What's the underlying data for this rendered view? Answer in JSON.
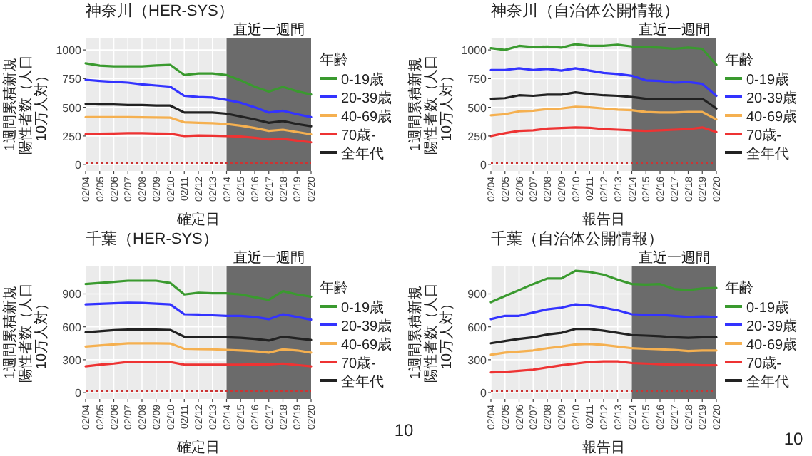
{
  "chart_data": [
    {
      "type": "line",
      "title": "神奈川（HER-SYS）",
      "xlabel": "確定日",
      "ylabel": "1週間累積新規陽性者数（人口10万人対）",
      "legend_title": "年齢",
      "legend": "right",
      "grid": true,
      "categories": [
        "02/04",
        "02/05",
        "02/06",
        "02/07",
        "02/08",
        "02/09",
        "02/10",
        "02/11",
        "02/12",
        "02/13",
        "02/14",
        "02/15",
        "02/16",
        "02/17",
        "02/18",
        "02/19",
        "02/20"
      ],
      "ylim": [
        -55,
        1100
      ],
      "yticks": [
        0,
        250,
        500,
        750,
        1000
      ],
      "series": [
        {
          "name": "0-19歳",
          "color": "#3a9a2f",
          "values": [
            883,
            863,
            857,
            857,
            857,
            865,
            870,
            782,
            795,
            795,
            782,
            735,
            680,
            638,
            678,
            640,
            612
          ]
        },
        {
          "name": "20-39歳",
          "color": "#3333ff",
          "values": [
            740,
            730,
            722,
            715,
            700,
            690,
            680,
            600,
            590,
            585,
            565,
            540,
            500,
            455,
            470,
            440,
            415
          ]
        },
        {
          "name": "40-69歳",
          "color": "#f5b050",
          "values": [
            415,
            415,
            415,
            415,
            413,
            412,
            410,
            370,
            365,
            362,
            355,
            340,
            320,
            295,
            305,
            285,
            265
          ]
        },
        {
          "name": "70歳-",
          "color": "#ee3333",
          "values": [
            265,
            270,
            272,
            275,
            275,
            272,
            270,
            250,
            255,
            253,
            250,
            245,
            235,
            220,
            225,
            210,
            195
          ]
        },
        {
          "name": "全年代",
          "color": "#222222",
          "values": [
            530,
            525,
            525,
            520,
            520,
            515,
            515,
            455,
            455,
            455,
            445,
            420,
            395,
            365,
            380,
            355,
            335
          ]
        }
      ],
      "bands": [
        {
          "axis": "x",
          "from": "02/14",
          "to": "02/20",
          "label": "直近一週間",
          "color": "#6b6b6b"
        }
      ],
      "ref_lines": [
        {
          "axis": "y",
          "value": 15,
          "color": "#cc3333",
          "line_style": "dotted"
        }
      ]
    },
    {
      "type": "line",
      "title": "神奈川（自治体公開情報）",
      "xlabel": "報告日",
      "ylabel": "1週間累積新規陽性者数（人口10万人対）",
      "legend_title": "年齢",
      "legend": "right",
      "grid": true,
      "categories": [
        "02/04",
        "02/05",
        "02/06",
        "02/07",
        "02/08",
        "02/09",
        "02/10",
        "02/11",
        "02/12",
        "02/13",
        "02/14",
        "02/15",
        "02/16",
        "02/17",
        "02/18",
        "02/19",
        "02/20"
      ],
      "ylim": [
        -55,
        1100
      ],
      "yticks": [
        0,
        250,
        500,
        750,
        1000
      ],
      "series": [
        {
          "name": "0-19歳",
          "color": "#3a9a2f",
          "values": [
            1015,
            1000,
            1035,
            1025,
            1030,
            1020,
            1050,
            1035,
            1035,
            1045,
            1030,
            1025,
            1020,
            1010,
            1020,
            1010,
            870
          ]
        },
        {
          "name": "20-39歳",
          "color": "#3333ff",
          "values": [
            825,
            825,
            840,
            825,
            835,
            820,
            840,
            820,
            800,
            790,
            775,
            735,
            730,
            715,
            720,
            705,
            600
          ]
        },
        {
          "name": "40-69歳",
          "color": "#f5b050",
          "values": [
            430,
            440,
            465,
            470,
            485,
            490,
            505,
            500,
            490,
            480,
            475,
            460,
            455,
            455,
            460,
            460,
            395
          ]
        },
        {
          "name": "70歳-",
          "color": "#ee3333",
          "values": [
            250,
            275,
            295,
            300,
            315,
            320,
            325,
            322,
            310,
            305,
            300,
            295,
            300,
            305,
            310,
            325,
            285
          ]
        },
        {
          "name": "全年代",
          "color": "#222222",
          "values": [
            575,
            580,
            605,
            600,
            610,
            610,
            630,
            615,
            605,
            600,
            590,
            575,
            575,
            570,
            575,
            575,
            490
          ]
        }
      ],
      "bands": [
        {
          "axis": "x",
          "from": "02/14",
          "to": "02/20",
          "label": "直近一週間",
          "color": "#6b6b6b"
        }
      ],
      "ref_lines": [
        {
          "axis": "y",
          "value": 15,
          "color": "#cc3333",
          "line_style": "dotted"
        }
      ]
    },
    {
      "type": "line",
      "title": "千葉（HER-SYS）",
      "xlabel": "確定日",
      "ylabel": "1週間累積新規陽性者数（人口10万人対）",
      "legend_title": "年齢",
      "legend": "right",
      "grid": true,
      "categories": [
        "02/04",
        "02/05",
        "02/06",
        "02/07",
        "02/08",
        "02/09",
        "02/10",
        "02/11",
        "02/12",
        "02/13",
        "02/14",
        "02/15",
        "02/16",
        "02/17",
        "02/18",
        "02/19",
        "02/20"
      ],
      "ylim": [
        -58,
        1150
      ],
      "yticks": [
        0,
        300,
        600,
        900
      ],
      "series": [
        {
          "name": "0-19歳",
          "color": "#3a9a2f",
          "values": [
            990,
            1000,
            1010,
            1020,
            1020,
            1020,
            1000,
            895,
            910,
            905,
            905,
            895,
            870,
            845,
            925,
            895,
            875
          ]
        },
        {
          "name": "20-39歳",
          "color": "#3333ff",
          "values": [
            805,
            810,
            815,
            820,
            818,
            812,
            805,
            715,
            712,
            705,
            700,
            700,
            690,
            670,
            715,
            690,
            665
          ]
        },
        {
          "name": "40-69歳",
          "color": "#f5b050",
          "values": [
            420,
            430,
            440,
            450,
            450,
            450,
            448,
            400,
            398,
            395,
            390,
            385,
            378,
            365,
            395,
            385,
            365
          ]
        },
        {
          "name": "70歳-",
          "color": "#ee3333",
          "values": [
            240,
            255,
            265,
            280,
            282,
            282,
            280,
            255,
            255,
            255,
            255,
            255,
            258,
            258,
            265,
            252,
            240
          ]
        },
        {
          "name": "全年代",
          "color": "#222222",
          "values": [
            550,
            560,
            570,
            575,
            578,
            575,
            572,
            510,
            510,
            505,
            505,
            500,
            490,
            475,
            510,
            495,
            480
          ]
        }
      ],
      "bands": [
        {
          "axis": "x",
          "from": "02/14",
          "to": "02/20",
          "label": "直近一週間",
          "color": "#6b6b6b"
        }
      ],
      "ref_lines": [
        {
          "axis": "y",
          "value": 15,
          "color": "#cc3333",
          "line_style": "dotted"
        }
      ]
    },
    {
      "type": "line",
      "title": "千葉（自治体公開情報）",
      "xlabel": "報告日",
      "ylabel": "1週間累積新規陽性者数（人口10万人対）",
      "legend_title": "年齢",
      "legend": "right",
      "grid": true,
      "categories": [
        "02/04",
        "02/05",
        "02/06",
        "02/07",
        "02/08",
        "02/09",
        "02/10",
        "02/11",
        "02/12",
        "02/13",
        "02/14",
        "02/15",
        "02/16",
        "02/17",
        "02/18",
        "02/19",
        "02/20"
      ],
      "ylim": [
        -58,
        1150
      ],
      "yticks": [
        0,
        300,
        600,
        900
      ],
      "series": [
        {
          "name": "0-19歳",
          "color": "#3a9a2f",
          "values": [
            825,
            880,
            935,
            990,
            1040,
            1040,
            1110,
            1100,
            1075,
            1030,
            990,
            985,
            990,
            945,
            935,
            950,
            955
          ]
        },
        {
          "name": "20-39歳",
          "color": "#3333ff",
          "values": [
            670,
            700,
            700,
            730,
            760,
            775,
            805,
            795,
            775,
            750,
            715,
            710,
            710,
            700,
            690,
            695,
            690
          ]
        },
        {
          "name": "40-69歳",
          "color": "#f5b050",
          "values": [
            345,
            365,
            375,
            385,
            405,
            420,
            440,
            445,
            435,
            420,
            405,
            400,
            395,
            390,
            380,
            385,
            385
          ]
        },
        {
          "name": "70歳-",
          "color": "#ee3333",
          "values": [
            185,
            190,
            200,
            210,
            230,
            250,
            265,
            280,
            285,
            285,
            270,
            265,
            260,
            255,
            255,
            250,
            250
          ]
        },
        {
          "name": "全年代",
          "color": "#222222",
          "values": [
            450,
            470,
            490,
            505,
            530,
            545,
            580,
            580,
            565,
            545,
            525,
            520,
            515,
            505,
            500,
            505,
            505
          ]
        }
      ],
      "bands": [
        {
          "axis": "x",
          "from": "02/14",
          "to": "02/20",
          "label": "直近一週間",
          "color": "#6b6b6b"
        }
      ],
      "ref_lines": [
        {
          "axis": "y",
          "value": 15,
          "color": "#cc3333",
          "line_style": "dotted"
        }
      ]
    },
    {
      "type": "other",
      "annotations": [
        "10",
        "10"
      ]
    }
  ]
}
